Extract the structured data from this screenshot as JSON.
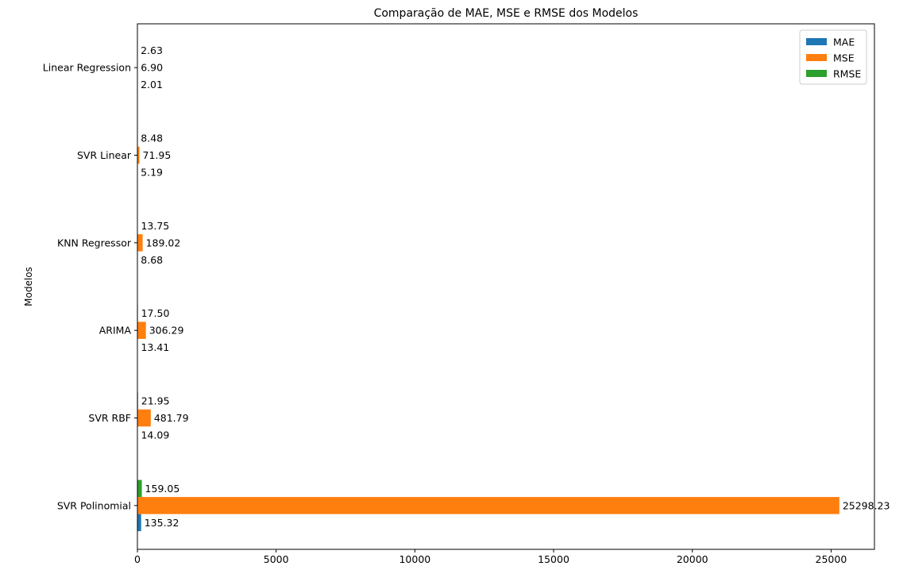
{
  "chart_data": {
    "type": "bar",
    "orientation": "horizontal",
    "title": "Comparação de MAE, MSE e RMSE dos Modelos",
    "xlabel": "",
    "ylabel": "Modelos",
    "categories": [
      "SVR Polinomial",
      "SVR RBF",
      "ARIMA",
      "KNN Regressor",
      "SVR Linear",
      "Linear Regression"
    ],
    "series": [
      {
        "name": "MAE",
        "color": "#1f77b4",
        "values": [
          135.32,
          14.09,
          13.41,
          8.68,
          5.19,
          2.01
        ]
      },
      {
        "name": "MSE",
        "color": "#ff7f0e",
        "values": [
          25298.23,
          481.79,
          306.29,
          189.02,
          71.95,
          6.9
        ]
      },
      {
        "name": "RMSE",
        "color": "#2ca02c",
        "values": [
          159.05,
          21.95,
          17.5,
          13.75,
          8.48,
          2.63
        ]
      }
    ],
    "data_labels": [
      [
        "135.32",
        "25298.23",
        "159.05"
      ],
      [
        "14.09",
        "481.79",
        "21.95"
      ],
      [
        "13.41",
        "306.29",
        "17.50"
      ],
      [
        "8.68",
        "189.02",
        "13.75"
      ],
      [
        "5.19",
        "71.95",
        "8.48"
      ],
      [
        "2.01",
        "6.90",
        "2.63"
      ]
    ],
    "xticks": [
      0,
      5000,
      10000,
      15000,
      20000,
      25000
    ],
    "xtick_labels": [
      "0",
      "5000",
      "10000",
      "15000",
      "20000",
      "25000"
    ],
    "xlim": [
      0,
      26562.6
    ],
    "legend": {
      "position": "top-right",
      "entries": [
        "MAE",
        "MSE",
        "RMSE"
      ]
    },
    "grid": false
  }
}
